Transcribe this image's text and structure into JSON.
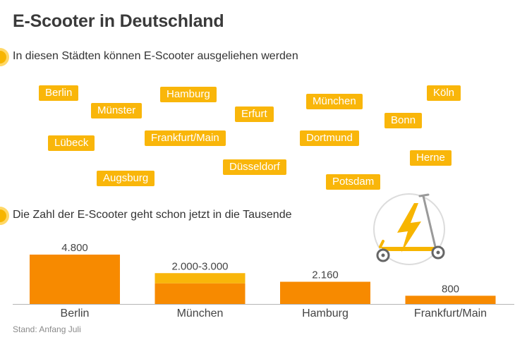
{
  "title": "E-Scooter in Deutschland",
  "section_cities": {
    "heading": "In diesen Städten können E-Scooter ausgeliehen werden"
  },
  "cities": [
    "Berlin",
    "Münster",
    "Hamburg",
    "Erfurt",
    "München",
    "Köln",
    "Bonn",
    "Lübeck",
    "Frankfurt/Main",
    "Dortmund",
    "Herne",
    "Augsburg",
    "Düsseldorf",
    "Potsdam"
  ],
  "section_counts": {
    "heading": "Die Zahl der E-Scooter geht schon jetzt in die Tausende"
  },
  "chart_data": {
    "type": "bar",
    "categories": [
      "Berlin",
      "München",
      "Hamburg",
      "Frankfurt/Main"
    ],
    "values": [
      4800,
      2000,
      2160,
      800
    ],
    "range_upper": [
      null,
      3000,
      null,
      null
    ],
    "data_labels": [
      "4.800",
      "2.000-3.000",
      "2.160",
      "800"
    ],
    "title": "",
    "xlabel": "",
    "ylabel": "",
    "ylim": [
      0,
      4800
    ],
    "grid": false,
    "colors": {
      "bar": "#f78a00",
      "range": "#f9b60a",
      "baseline": "#b5b5b5",
      "label": "#444444"
    }
  },
  "icons": {
    "illustration": "e-scooter-icon"
  },
  "colors": {
    "accent": "#f9b60a",
    "title": "#3a3a3a"
  },
  "footer": {
    "source_note": "Stand: Anfang Juli"
  }
}
